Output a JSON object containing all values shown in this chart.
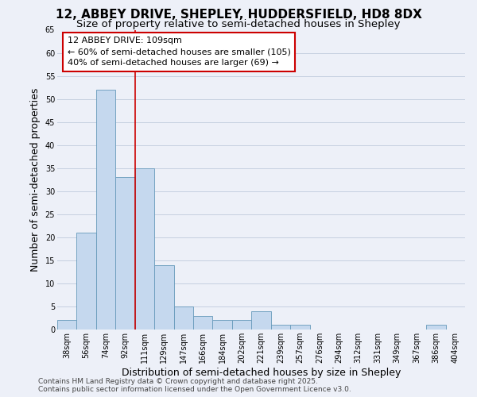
{
  "title_line1": "12, ABBEY DRIVE, SHEPLEY, HUDDERSFIELD, HD8 8DX",
  "title_line2": "Size of property relative to semi-detached houses in Shepley",
  "xlabel": "Distribution of semi-detached houses by size in Shepley",
  "ylabel": "Number of semi-detached properties",
  "categories": [
    "38sqm",
    "56sqm",
    "74sqm",
    "92sqm",
    "111sqm",
    "129sqm",
    "147sqm",
    "166sqm",
    "184sqm",
    "202sqm",
    "221sqm",
    "239sqm",
    "257sqm",
    "276sqm",
    "294sqm",
    "312sqm",
    "331sqm",
    "349sqm",
    "367sqm",
    "386sqm",
    "404sqm"
  ],
  "values": [
    2,
    21,
    52,
    33,
    35,
    14,
    5,
    3,
    2,
    2,
    4,
    1,
    1,
    0,
    0,
    0,
    0,
    0,
    0,
    1,
    0
  ],
  "bar_color": "#c5d8ee",
  "bar_edge_color": "#6699bb",
  "vline_index": 4,
  "annotation_title": "12 ABBEY DRIVE: 109sqm",
  "annotation_line1": "← 60% of semi-detached houses are smaller (105)",
  "annotation_line2": "40% of semi-detached houses are larger (69) →",
  "annotation_box_facecolor": "#ffffff",
  "annotation_box_edgecolor": "#cc0000",
  "vline_color": "#cc0000",
  "ylim": [
    0,
    65
  ],
  "yticks": [
    0,
    5,
    10,
    15,
    20,
    25,
    30,
    35,
    40,
    45,
    50,
    55,
    60,
    65
  ],
  "grid_color": "#c5cfe0",
  "background_color": "#edf0f8",
  "axes_background": "#edf0f8",
  "footer_line1": "Contains HM Land Registry data © Crown copyright and database right 2025.",
  "footer_line2": "Contains public sector information licensed under the Open Government Licence v3.0.",
  "title1_fontsize": 11,
  "title2_fontsize": 9.5,
  "axis_label_fontsize": 9,
  "tick_fontsize": 7,
  "annotation_fontsize": 8,
  "footer_fontsize": 6.5
}
